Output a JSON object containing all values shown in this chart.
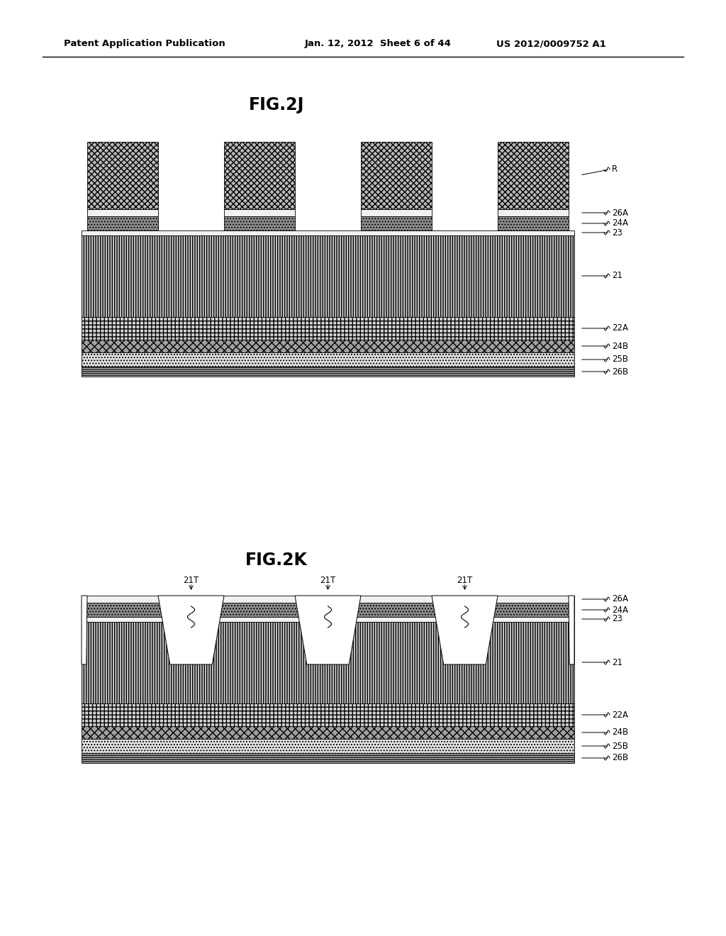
{
  "bg_color": "#ffffff",
  "header_left": "Patent Application Publication",
  "header_mid": "Jan. 12, 2012  Sheet 6 of 44",
  "header_right": "US 2012/0009752 A1",
  "fig2j_title": "FIG.2J",
  "fig2k_title": "FIG.2K",
  "fig2j_labels": [
    "R",
    "26A",
    "24A",
    "23",
    "21",
    "22A",
    "24B",
    "25B",
    "26B"
  ],
  "fig2k_labels": [
    "26A",
    "24A",
    "23",
    "21",
    "22A",
    "24B",
    "25B",
    "26B"
  ],
  "fig2k_top_labels": [
    "21T",
    "21T",
    "21T"
  ]
}
